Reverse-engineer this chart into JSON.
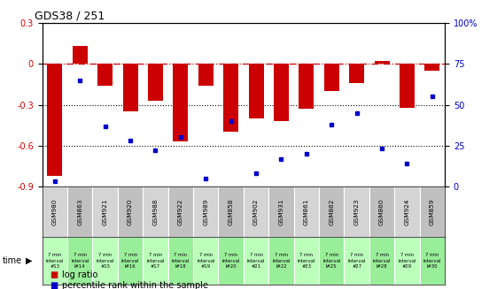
{
  "title": "GDS38 / 251",
  "samples": [
    "GSM980",
    "GSM863",
    "GSM921",
    "GSM920",
    "GSM988",
    "GSM922",
    "GSM989",
    "GSM858",
    "GSM902",
    "GSM931",
    "GSM861",
    "GSM862",
    "GSM923",
    "GSM860",
    "GSM924",
    "GSM859"
  ],
  "time_labels": [
    "7 min\ninterval\n#13",
    "7 min\ninterval\nl#14",
    "7 min\ninterval\n#15",
    "7 min\ninterval\nl#16",
    "7 min\ninterval\n#17",
    "7 min\ninterval\nl#18",
    "7 min\ninterval\n#19",
    "7 min\ninterval\nl#20",
    "7 min\ninterval\n#21",
    "7 min\ninterval\nl#22",
    "7 min\ninterval\n#23",
    "7 min\ninterval\nl#25",
    "7 min\ninterval\n#27",
    "7 min\ninterval\nl#28",
    "7 min\ninterval\n#29",
    "7 min\ninterval\nl#30"
  ],
  "log_ratio": [
    -0.82,
    0.13,
    -0.16,
    -0.35,
    -0.27,
    -0.57,
    -0.16,
    -0.5,
    -0.4,
    -0.42,
    -0.33,
    -0.2,
    -0.14,
    0.02,
    -0.32,
    -0.05
  ],
  "percentile": [
    3,
    65,
    37,
    28,
    22,
    30,
    5,
    40,
    8,
    17,
    20,
    38,
    45,
    23,
    14,
    55
  ],
  "bar_color": "#cc0000",
  "dot_color": "#0000cc",
  "left_ylim": [
    -0.9,
    0.3
  ],
  "right_ylim": [
    0,
    100
  ],
  "left_yticks": [
    -0.9,
    -0.6,
    -0.3,
    0.0,
    0.3
  ],
  "right_yticks": [
    0,
    25,
    50,
    75,
    100
  ],
  "right_yticklabels": [
    "0",
    "25",
    "50",
    "75",
    "100%"
  ],
  "dotted_lines": [
    -0.3,
    -0.6
  ],
  "sample_bg_odd": "#d4d4d4",
  "sample_bg_even": "#c0c0c0",
  "time_bg_odd": "#99ee99",
  "time_bg_even": "#bbffbb",
  "time_label": "time",
  "legend_items": [
    {
      "color": "#cc0000",
      "label": "log ratio"
    },
    {
      "color": "#0000cc",
      "label": "percentile rank within the sample"
    }
  ]
}
